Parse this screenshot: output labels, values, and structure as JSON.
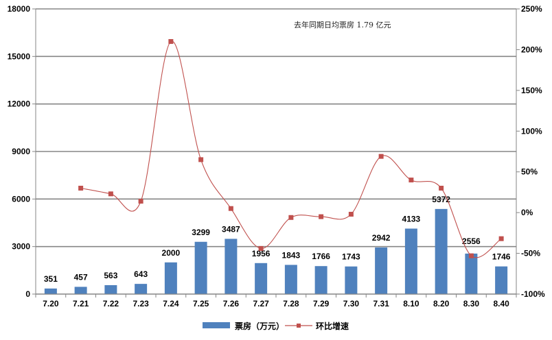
{
  "chart_data": {
    "type": "bar+line",
    "categories": [
      "7.20",
      "7.21",
      "7.22",
      "7.23",
      "7.24",
      "7.25",
      "7.26",
      "7.27",
      "7.28",
      "7.29",
      "7.30",
      "7.31",
      "8.10",
      "8.20",
      "8.30",
      "8.40"
    ],
    "series": [
      {
        "name": "票房（万元）",
        "type": "bar",
        "axis": "left",
        "color": "#4F81BD",
        "values": [
          351,
          457,
          563,
          643,
          2000,
          3299,
          3487,
          1956,
          1843,
          1766,
          1743,
          2942,
          4133,
          5372,
          2556,
          1746
        ],
        "labels": [
          "351",
          "457",
          "563",
          "643",
          "2000",
          "3299",
          "3487",
          "1956",
          "1843",
          "1766",
          "1743",
          "2942",
          "4133",
          "5372",
          "2556",
          "1746"
        ]
      },
      {
        "name": "环比增速",
        "type": "line",
        "axis": "right",
        "smooth": true,
        "color": "#C0504D",
        "values": [
          null,
          30,
          23,
          14,
          210,
          65,
          5,
          -44,
          -6,
          -5,
          -2,
          69,
          40,
          30,
          -53,
          -32
        ]
      }
    ],
    "left_axis": {
      "min": 0,
      "max": 18000,
      "ticks": [
        "0",
        "3000",
        "6000",
        "9000",
        "12000",
        "15000",
        "18000"
      ]
    },
    "right_axis": {
      "min": -100,
      "max": 250,
      "ticks": [
        "-100%",
        "-50%",
        "0%",
        "50%",
        "100%",
        "150%",
        "200%",
        "250%"
      ]
    },
    "grid": true,
    "legend_position": "bottom",
    "annotation": "去年同期日均票房 1.79 亿元"
  }
}
